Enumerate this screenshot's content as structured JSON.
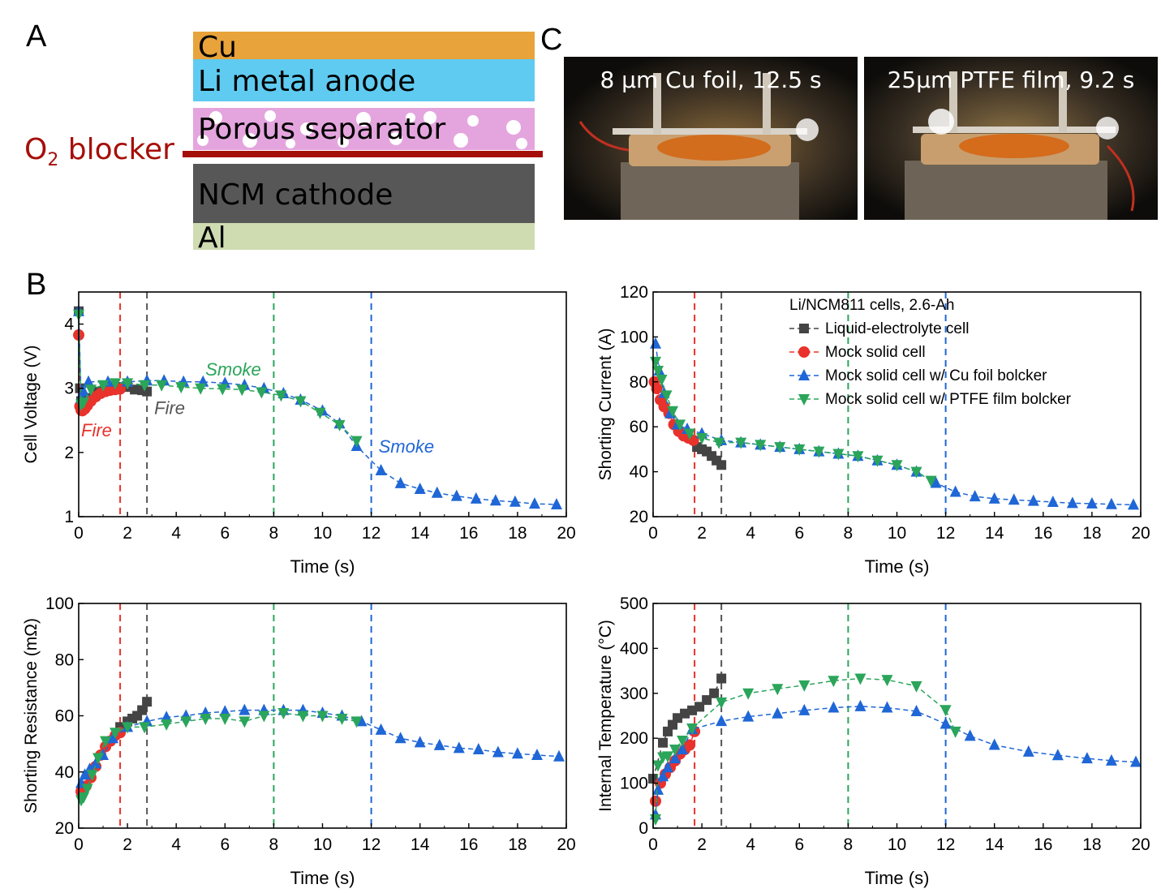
{
  "panels": {
    "a": "A",
    "b": "B",
    "c": "C"
  },
  "stack": {
    "layers": [
      {
        "label": "Cu",
        "color": "#e8a33a"
      },
      {
        "label": "Li metal anode",
        "color": "#5fcbf1"
      },
      {
        "label": "Porous separator",
        "color": "#e4a5de"
      },
      {
        "label": "NCM cathode",
        "color": "#575757"
      },
      {
        "label": "Al",
        "color": "#cfdcb2"
      }
    ],
    "blocker": {
      "prefix": "O",
      "sub": "2",
      "suffix": " blocker",
      "color": "#a50f0a"
    }
  },
  "photos": [
    {
      "caption": "8 μm Cu foil, 12.5 s"
    },
    {
      "caption": "25μm PTFE film, 9.2 s"
    }
  ],
  "chart_data": [
    {
      "type": "scatter",
      "xlabel": "Time (s)",
      "ylabel": "Cell Voltage (V)",
      "xlim": [
        0,
        20
      ],
      "ylim": [
        1,
        4.5
      ],
      "xticks": [
        0,
        2,
        4,
        6,
        8,
        10,
        12,
        14,
        16,
        18,
        20
      ],
      "yticks": [
        1,
        2,
        3,
        4
      ],
      "vlines": [
        {
          "x": 1.7,
          "color": "#e8322b"
        },
        {
          "x": 2.8,
          "color": "#555555"
        },
        {
          "x": 8.0,
          "color": "#2aa55a"
        },
        {
          "x": 12.0,
          "color": "#1f66d6"
        }
      ],
      "annotations": [
        {
          "text": "Fire",
          "x": 0.1,
          "y": 2.25,
          "color": "#e8322b"
        },
        {
          "text": "Fire",
          "x": 3.1,
          "y": 2.6,
          "color": "#555555"
        },
        {
          "text": "Smoke",
          "x": 5.2,
          "y": 3.2,
          "color": "#2aa55a"
        },
        {
          "text": "Smoke",
          "x": 12.3,
          "y": 2.0,
          "color": "#1f66d6"
        }
      ],
      "series": [
        {
          "marker": "square",
          "color": "#444444",
          "x": [
            0,
            0.05,
            0.1,
            0.3,
            0.5,
            0.8,
            1.1,
            1.4,
            1.7,
            2.0,
            2.3,
            2.6,
            2.8
          ],
          "y": [
            4.2,
            3.0,
            2.8,
            2.75,
            2.85,
            2.95,
            3.0,
            3.02,
            3.02,
            3.02,
            2.98,
            2.97,
            2.95
          ]
        },
        {
          "marker": "circle",
          "color": "#e8322b",
          "x": [
            0,
            0.05,
            0.1,
            0.15,
            0.25,
            0.35,
            0.5,
            0.7,
            0.9,
            1.1,
            1.3,
            1.5,
            1.7
          ],
          "y": [
            3.83,
            2.72,
            2.66,
            2.65,
            2.68,
            2.73,
            2.8,
            2.87,
            2.92,
            2.95,
            2.97,
            2.98,
            2.99
          ]
        },
        {
          "marker": "triangle-up",
          "color": "#1f66d6",
          "x": [
            0,
            0.1,
            0.2,
            0.4,
            1.2,
            2.0,
            2.8,
            3.5,
            4.3,
            5.1,
            6.0,
            6.8,
            7.6,
            8.4,
            9.1,
            10.0,
            10.7,
            11.4,
            12.4,
            13.2,
            14.0,
            14.7,
            15.5,
            16.3,
            17.1,
            17.9,
            18.7,
            19.6
          ],
          "y": [
            4.2,
            2.85,
            2.95,
            3.1,
            3.1,
            3.1,
            3.12,
            3.12,
            3.1,
            3.1,
            3.08,
            3.05,
            3.0,
            2.92,
            2.82,
            2.65,
            2.45,
            2.1,
            1.72,
            1.52,
            1.43,
            1.37,
            1.32,
            1.28,
            1.25,
            1.23,
            1.2,
            1.19
          ]
        },
        {
          "marker": "triangle-down",
          "color": "#2aa55a",
          "x": [
            0.0,
            0.1,
            0.2,
            0.5,
            1.0,
            1.5,
            2.0,
            2.7,
            3.4,
            4.2,
            5.0,
            5.9,
            6.7,
            7.5,
            8.3,
            9.1,
            9.9,
            10.7,
            11.4
          ],
          "y": [
            4.15,
            2.75,
            2.78,
            2.98,
            3.05,
            3.08,
            3.08,
            3.05,
            3.05,
            3.02,
            3.0,
            2.99,
            2.98,
            2.94,
            2.89,
            2.8,
            2.62,
            2.43,
            2.18
          ]
        }
      ]
    },
    {
      "type": "scatter",
      "xlabel": "Time (s)",
      "ylabel": "Shorting Current (A)",
      "xlim": [
        0,
        20
      ],
      "ylim": [
        20,
        120
      ],
      "xticks": [
        0,
        2,
        4,
        6,
        8,
        10,
        12,
        14,
        16,
        18,
        20
      ],
      "yticks": [
        20,
        40,
        60,
        80,
        100,
        120
      ],
      "vlines": [
        {
          "x": 1.7,
          "color": "#e8322b"
        },
        {
          "x": 2.8,
          "color": "#555555"
        },
        {
          "x": 8.0,
          "color": "#2aa55a"
        },
        {
          "x": 12.0,
          "color": "#1f66d6"
        }
      ],
      "legend": {
        "title": "Li/NCM811 cells, 2.6-Ah",
        "entries": [
          "Liquid-electrolyte cell",
          "Mock solid cell",
          "Mock solid cell w/ Cu foil bolcker",
          "Mock solid cell w/ PTFE film bolcker"
        ]
      },
      "series": [
        {
          "marker": "square",
          "color": "#444444",
          "x": [
            1.8,
            2.0,
            2.2,
            2.4,
            2.6,
            2.8
          ],
          "y": [
            51,
            50,
            49,
            47,
            45,
            43
          ]
        },
        {
          "marker": "circle",
          "color": "#e8322b",
          "x": [
            0.05,
            0.15,
            0.3,
            0.45,
            0.65,
            0.85,
            1.05,
            1.25,
            1.45,
            1.65
          ],
          "y": [
            80,
            77,
            72,
            69,
            66,
            61,
            58,
            56,
            55,
            54
          ]
        },
        {
          "marker": "triangle-up",
          "color": "#1f66d6",
          "x": [
            0.1,
            0.25,
            0.45,
            0.7,
            1.0,
            1.4,
            2.0,
            2.8,
            3.6,
            4.4,
            5.2,
            6.0,
            6.8,
            7.6,
            8.4,
            9.2,
            10.0,
            10.8,
            11.6,
            12.4,
            13.2,
            14.0,
            14.8,
            15.6,
            16.4,
            17.2,
            18.0,
            18.8,
            19.7
          ],
          "y": [
            97,
            85,
            75,
            66,
            61,
            59,
            57,
            54,
            53,
            52,
            51,
            50,
            49,
            48,
            47,
            45,
            43,
            40,
            35,
            31,
            29,
            28,
            27.5,
            27,
            26.5,
            26,
            25.8,
            25.5,
            25.3
          ]
        },
        {
          "marker": "triangle-down",
          "color": "#2aa55a",
          "x": [
            0.1,
            0.2,
            0.35,
            0.55,
            0.8,
            1.1,
            1.5,
            2.0,
            2.7,
            3.6,
            4.4,
            5.2,
            6.0,
            6.8,
            7.6,
            8.4,
            9.2,
            10.0,
            10.8,
            11.4
          ],
          "y": [
            89,
            85,
            81,
            74,
            67,
            61,
            57,
            55,
            53,
            53,
            52,
            51,
            50,
            49,
            48,
            47,
            45,
            43,
            40,
            36
          ]
        }
      ]
    },
    {
      "type": "scatter",
      "xlabel": "Time (s)",
      "ylabel": "Shorting Resistance (mΩ)",
      "xlim": [
        0,
        20
      ],
      "ylim": [
        20,
        100
      ],
      "xticks": [
        0,
        2,
        4,
        6,
        8,
        10,
        12,
        14,
        16,
        18,
        20
      ],
      "yticks": [
        20,
        40,
        60,
        80,
        100
      ],
      "vlines": [
        {
          "x": 1.7,
          "color": "#e8322b"
        },
        {
          "x": 2.8,
          "color": "#555555"
        },
        {
          "x": 8.0,
          "color": "#2aa55a"
        },
        {
          "x": 12.0,
          "color": "#1f66d6"
        }
      ],
      "series": [
        {
          "marker": "square",
          "color": "#444444",
          "x": [
            1.7,
            2.0,
            2.2,
            2.4,
            2.6,
            2.8
          ],
          "y": [
            56,
            58,
            59,
            60,
            62,
            65
          ]
        },
        {
          "marker": "circle",
          "color": "#e8322b",
          "x": [
            0.1,
            0.3,
            0.5,
            0.7,
            0.9,
            1.1,
            1.3,
            1.5,
            1.7
          ],
          "y": [
            33,
            35,
            38,
            42,
            46,
            49,
            51,
            53,
            54
          ]
        },
        {
          "marker": "triangle-up",
          "color": "#1f66d6",
          "x": [
            0.1,
            0.25,
            0.45,
            0.7,
            1.0,
            1.4,
            2.0,
            2.8,
            3.6,
            4.4,
            5.2,
            6.0,
            6.8,
            7.6,
            8.4,
            9.2,
            10.0,
            10.8,
            11.6,
            12.4,
            13.2,
            14.0,
            14.8,
            15.6,
            16.4,
            17.2,
            18.0,
            18.8,
            19.7
          ],
          "y": [
            36,
            39,
            41,
            43,
            46,
            52,
            56,
            58,
            59.5,
            60,
            61,
            61.5,
            62,
            62,
            62,
            62,
            61,
            60,
            58,
            55,
            52,
            50.5,
            49.5,
            48.5,
            48,
            47,
            46.5,
            46,
            45.5
          ]
        },
        {
          "marker": "triangle-down",
          "color": "#2aa55a",
          "x": [
            0.1,
            0.2,
            0.35,
            0.55,
            0.8,
            1.1,
            1.5,
            2.0,
            2.7,
            3.6,
            4.4,
            5.2,
            6.0,
            6.8,
            7.6,
            8.4,
            9.2,
            10.0,
            10.8,
            11.4
          ],
          "y": [
            30,
            31,
            34,
            39,
            45,
            51,
            54,
            56,
            56,
            57,
            58,
            59,
            59,
            58,
            60,
            61,
            60,
            60,
            59,
            58
          ]
        }
      ]
    },
    {
      "type": "scatter",
      "xlabel": "Time (s)",
      "ylabel": "Internal Temperature (°C)",
      "xlim": [
        0,
        20
      ],
      "ylim": [
        0,
        500
      ],
      "xticks": [
        0,
        2,
        4,
        6,
        8,
        10,
        12,
        14,
        16,
        18,
        20
      ],
      "yticks": [
        0,
        100,
        200,
        300,
        400,
        500
      ],
      "vlines": [
        {
          "x": 1.7,
          "color": "#e8322b"
        },
        {
          "x": 2.8,
          "color": "#555555"
        },
        {
          "x": 8.0,
          "color": "#2aa55a"
        },
        {
          "x": 12.0,
          "color": "#1f66d6"
        }
      ],
      "series": [
        {
          "marker": "square",
          "color": "#444444",
          "x": [
            0.0,
            0.4,
            0.6,
            0.8,
            1.0,
            1.3,
            1.6,
            1.9,
            2.2,
            2.5,
            2.8
          ],
          "y": [
            110,
            190,
            215,
            230,
            245,
            255,
            262,
            270,
            285,
            300,
            333
          ]
        },
        {
          "marker": "circle",
          "color": "#e8322b",
          "x": [
            0.1,
            0.3,
            0.5,
            0.7,
            0.9,
            1.1,
            1.3,
            1.5,
            1.7
          ],
          "y": [
            60,
            100,
            120,
            135,
            150,
            165,
            175,
            185,
            215
          ]
        },
        {
          "marker": "triangle-up",
          "color": "#1f66d6",
          "x": [
            0.1,
            0.2,
            0.4,
            0.6,
            0.9,
            1.2,
            1.6,
            2.8,
            3.9,
            5.1,
            6.2,
            7.4,
            8.5,
            9.6,
            10.8,
            12.0,
            13.0,
            14.0,
            15.4,
            16.6,
            17.8,
            18.8,
            19.8
          ],
          "y": [
            30,
            85,
            115,
            135,
            155,
            175,
            220,
            238,
            248,
            255,
            262,
            268,
            271,
            268,
            260,
            232,
            205,
            185,
            170,
            162,
            155,
            150,
            147
          ]
        },
        {
          "marker": "triangle-down",
          "color": "#2aa55a",
          "x": [
            0.1,
            0.2,
            0.4,
            0.6,
            0.9,
            1.2,
            1.6,
            2.8,
            3.9,
            5.1,
            6.2,
            7.4,
            8.5,
            9.6,
            10.8,
            12.0,
            12.4
          ],
          "y": [
            20,
            140,
            158,
            160,
            175,
            195,
            222,
            280,
            300,
            310,
            318,
            328,
            333,
            330,
            316,
            263,
            215
          ]
        }
      ]
    }
  ]
}
